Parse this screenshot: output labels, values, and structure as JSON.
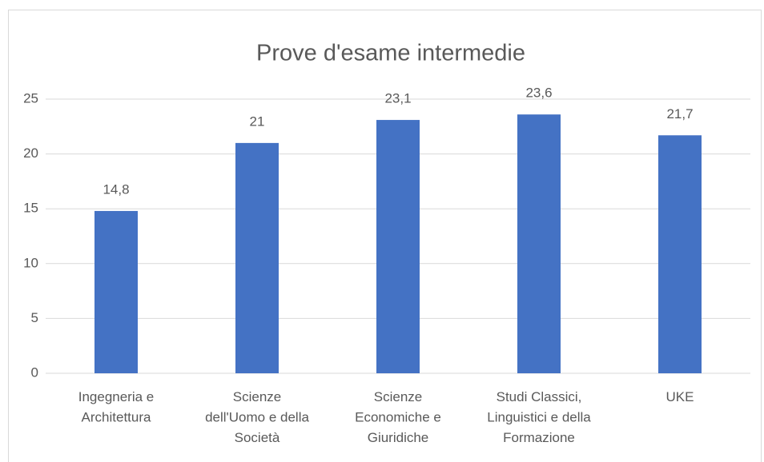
{
  "chart_data": {
    "type": "bar",
    "title": "Prove d'esame intermedie",
    "categories": [
      "Ingegneria e\nArchitettura",
      "Scienze\ndell'Uomo e della\nSocietà",
      "Scienze\nEconomiche e\nGiuridiche",
      "Studi Classici,\nLinguistici e della\nFormazione",
      "UKE"
    ],
    "values": [
      14.8,
      21,
      23.1,
      23.6,
      21.7
    ],
    "value_labels": [
      "14,8",
      "21",
      "23,1",
      "23,6",
      "21,7"
    ],
    "color": "#4472c4",
    "ylim": [
      0,
      25
    ],
    "yticks": [
      0,
      5,
      10,
      15,
      20,
      25
    ],
    "grid": true
  }
}
